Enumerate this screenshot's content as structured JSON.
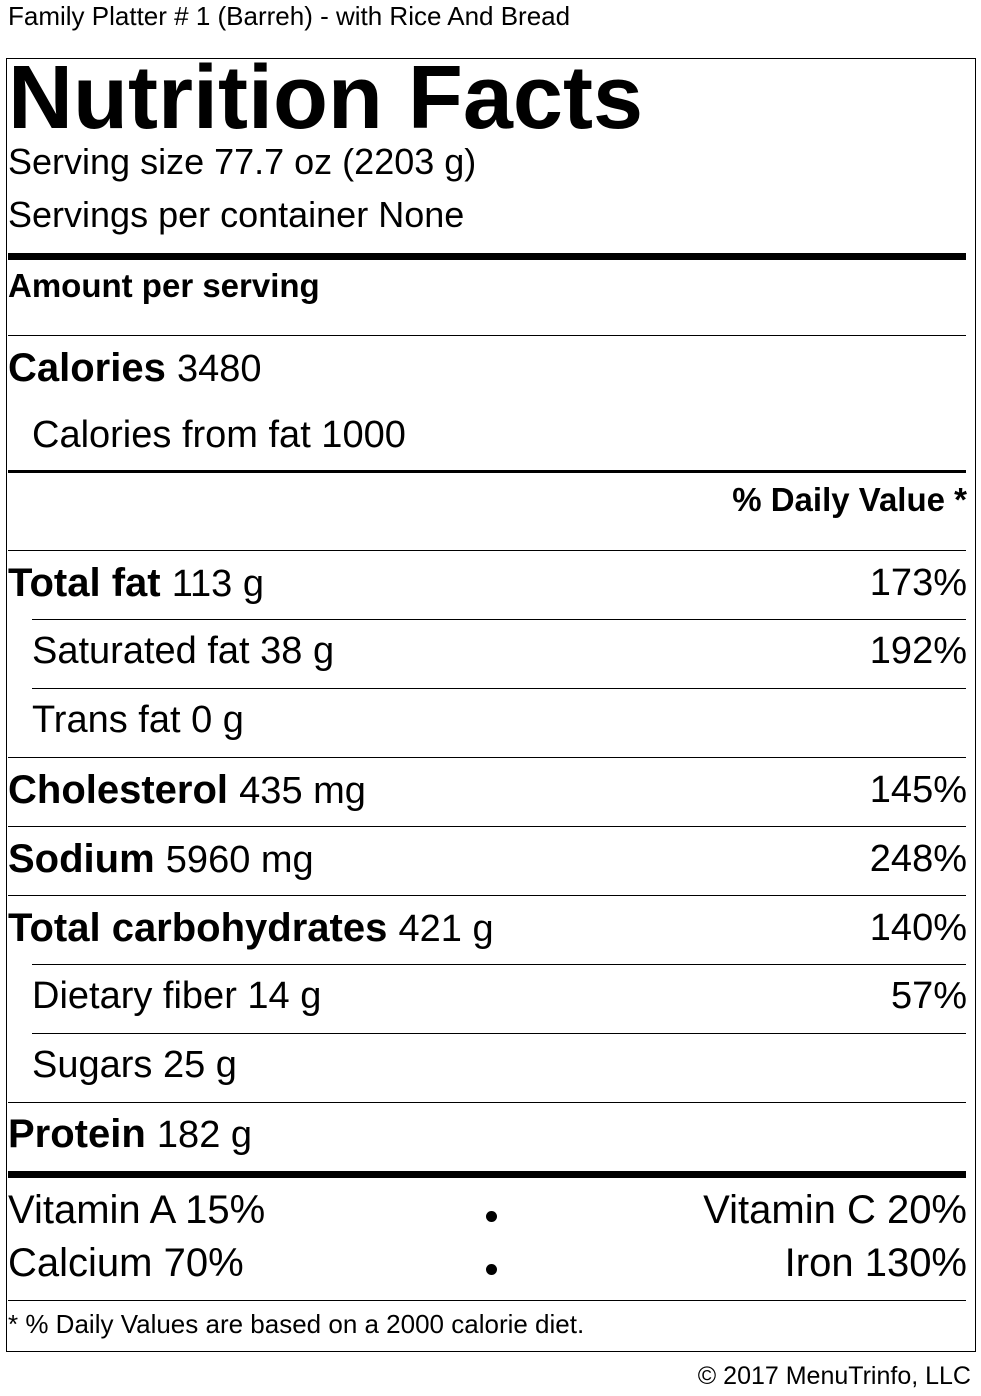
{
  "product_title": "Family Platter # 1 (Barreh) - with Rice And Bread",
  "heading": "Nutrition Facts",
  "serving_size": "Serving size 77.7 oz (2203 g)",
  "servings_per_container": "Servings per container None",
  "amount_per_serving": "Amount per serving",
  "calories": {
    "label": "Calories",
    "value": "3480"
  },
  "calories_from_fat": "Calories from fat 1000",
  "daily_value_header": "% Daily Value *",
  "nutrients": {
    "total_fat": {
      "label": "Total fat",
      "amount": "113 g",
      "dv": "173%"
    },
    "saturated_fat": {
      "label": "Saturated fat",
      "amount": "38 g",
      "dv": "192%"
    },
    "trans_fat": {
      "label": "Trans fat",
      "amount": "0 g"
    },
    "cholesterol": {
      "label": "Cholesterol",
      "amount": "435 mg",
      "dv": "145%"
    },
    "sodium": {
      "label": "Sodium",
      "amount": "5960 mg",
      "dv": "248%"
    },
    "total_carbohydrates": {
      "label": "Total carbohydrates",
      "amount": "421 g",
      "dv": "140%"
    },
    "dietary_fiber": {
      "label": "Dietary fiber",
      "amount": "14 g",
      "dv": "57%"
    },
    "sugars": {
      "label": "Sugars",
      "amount": "25 g"
    },
    "protein": {
      "label": "Protein",
      "amount": "182 g"
    }
  },
  "vitamins": {
    "vitamin_a": "Vitamin A 15%",
    "vitamin_c": "Vitamin C 20%",
    "calcium": "Calcium 70%",
    "iron": "Iron 130%"
  },
  "footnote": "* % Daily Values are based on a 2000 calorie diet.",
  "copyright": "© 2017 MenuTrinfo, LLC"
}
